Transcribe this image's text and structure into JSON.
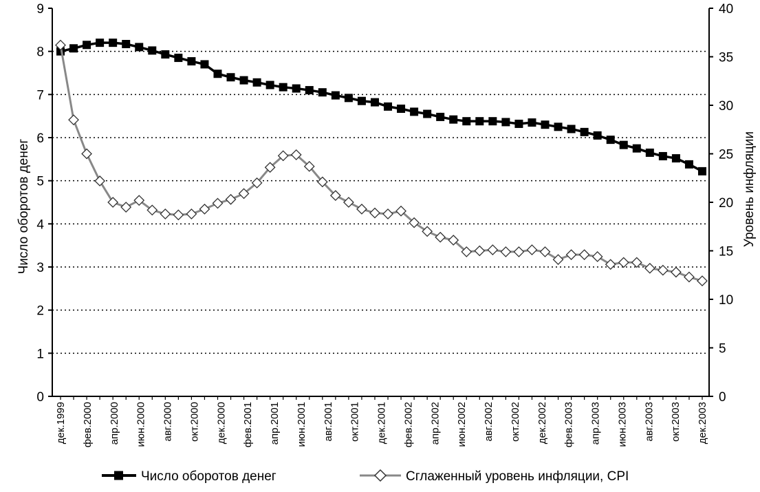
{
  "chart_data": {
    "type": "line",
    "title": "",
    "x_tick_labels": [
      "дек.1999",
      "фев.2000",
      "апр.2000",
      "июн.2000",
      "авг.2000",
      "окт.2000",
      "дек.2000",
      "фев.2001",
      "апр.2001",
      "июн.2001",
      "авг.2001",
      "окт.2001",
      "дек.2001",
      "фев.2002",
      "апр.2002",
      "июн.2002",
      "авг.2002",
      "окт.2002",
      "дек.2002",
      "фев.2003",
      "апр.2003",
      "июн.2003",
      "авг.2003",
      "окт.2003",
      "дек.2003"
    ],
    "y_left": {
      "label": "Число оборотов денег",
      "range": [
        0,
        9
      ],
      "ticks": [
        "0",
        "1",
        "2",
        "3",
        "4",
        "5",
        "6",
        "7",
        "8",
        "9"
      ]
    },
    "y_right": {
      "label": "Уровень инфляции",
      "range": [
        0,
        40
      ],
      "ticks": [
        "0",
        "5",
        "10",
        "15",
        "20",
        "25",
        "30",
        "35",
        "40"
      ]
    },
    "grid": "horizontal dotted",
    "legend_position": "bottom",
    "series": [
      {
        "name": "Число оборотов денег",
        "axis": "left",
        "color": "#000000",
        "marker": "square",
        "values": [
          8.0,
          8.07,
          8.15,
          8.2,
          8.2,
          8.17,
          8.1,
          8.02,
          7.93,
          7.85,
          7.77,
          7.7,
          7.48,
          7.4,
          7.33,
          7.28,
          7.22,
          7.17,
          7.14,
          7.1,
          7.05,
          6.98,
          6.92,
          6.85,
          6.82,
          6.72,
          6.67,
          6.6,
          6.55,
          6.48,
          6.42,
          6.38,
          6.38,
          6.38,
          6.36,
          6.32,
          6.35,
          6.3,
          6.25,
          6.2,
          6.13,
          6.05,
          5.95,
          5.83,
          5.75,
          5.65,
          5.57,
          5.52,
          5.38,
          5.22
        ]
      },
      {
        "name": "Сглаженный уровень инфляции, CPI",
        "axis": "right",
        "color": "#888888",
        "marker": "diamond",
        "values": [
          36.2,
          28.5,
          25.0,
          22.2,
          20.0,
          19.5,
          20.2,
          19.2,
          18.8,
          18.7,
          18.8,
          19.3,
          19.9,
          20.3,
          20.9,
          22.0,
          23.6,
          24.8,
          24.9,
          23.7,
          22.1,
          20.7,
          20.0,
          19.3,
          18.9,
          18.8,
          19.1,
          17.9,
          17.0,
          16.4,
          16.1,
          14.9,
          15.0,
          15.1,
          14.9,
          14.9,
          15.1,
          14.9,
          14.1,
          14.6,
          14.6,
          14.4,
          13.6,
          13.8,
          13.8,
          13.2,
          13.0,
          12.8,
          12.3,
          11.9
        ]
      }
    ]
  }
}
